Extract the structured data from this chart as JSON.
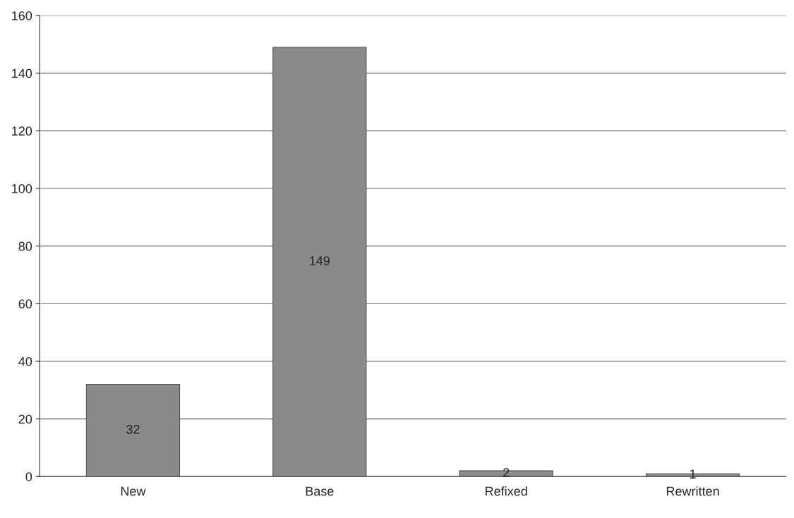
{
  "chart_data": {
    "type": "bar",
    "categories": [
      "New",
      "Base",
      "Refixed",
      "Rewritten"
    ],
    "values": [
      32,
      149,
      2,
      1
    ],
    "color": "#8a8a8a",
    "ylim": [
      0,
      160
    ],
    "yticks": [
      0,
      20,
      40,
      60,
      80,
      100,
      120,
      140,
      160
    ],
    "grid": "y",
    "data_labels": true
  }
}
